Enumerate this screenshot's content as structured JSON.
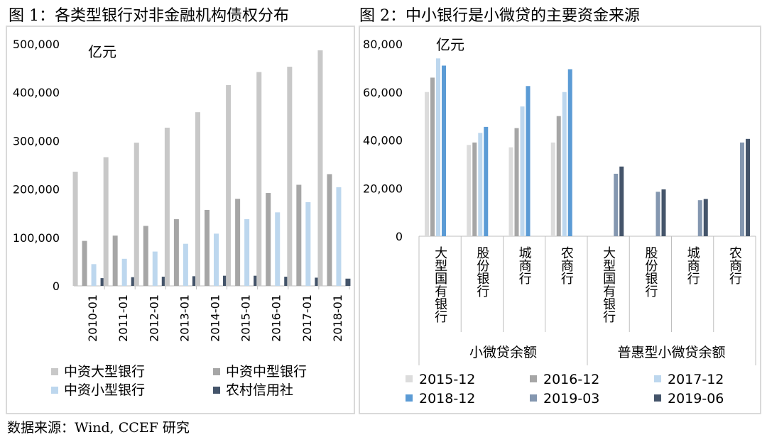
{
  "titles": {
    "fig1": "图 1：各类型银行对非金融机构债权分布",
    "fig2": "图 2：中小银行是小微贷的主要资金来源"
  },
  "source": "数据来源：Wind, CCEF 研究",
  "chart_data": [
    {
      "type": "bar",
      "title": "图 1：各类型银行对非金融机构债权分布",
      "unit_label": "亿元",
      "categories": [
        "2010-01",
        "2011-01",
        "2012-01",
        "2013-01",
        "2014-01",
        "2015-01",
        "2016-01",
        "2017-01",
        "2018-01"
      ],
      "ylim": [
        0,
        500000
      ],
      "yticks": [
        "500,000",
        "400,000",
        "300,000",
        "200,000",
        "100,000",
        "0"
      ],
      "ytick_values": [
        500000,
        400000,
        300000,
        200000,
        100000,
        0
      ],
      "legend_position": "bottom",
      "series": [
        {
          "name": "中资大型银行",
          "color": "#c8c8c8",
          "values": [
            236000,
            266000,
            296000,
            327000,
            359000,
            415000,
            442000,
            453000,
            487000
          ]
        },
        {
          "name": "中资中型银行",
          "color": "#a6a6a6",
          "values": [
            93000,
            104000,
            124000,
            138000,
            157000,
            180000,
            192000,
            209000,
            231000
          ]
        },
        {
          "name": "中资小型银行",
          "color": "#bdd7ee",
          "values": [
            45000,
            56000,
            71000,
            87000,
            108000,
            138000,
            152000,
            173000,
            204000
          ]
        },
        {
          "name": "农村信用社",
          "color": "#44546a",
          "values": [
            16000,
            18000,
            19000,
            20000,
            21000,
            21000,
            19000,
            17000,
            15000
          ]
        }
      ]
    },
    {
      "type": "bar",
      "title": "图 2：中小银行是小微贷的主要资金来源",
      "unit_label": "亿元",
      "categories": [
        "大型国有银行",
        "股份银行",
        "城商行",
        "农商行",
        "大型国有银行",
        "股份银行",
        "城商行",
        "农商行"
      ],
      "groups": [
        {
          "label": "小微贷余额",
          "span": [
            0,
            3
          ]
        },
        {
          "label": "普惠型小微贷余额",
          "span": [
            4,
            7
          ]
        }
      ],
      "ylim": [
        0,
        80000
      ],
      "yticks": [
        "80,000",
        "60,000",
        "40,000",
        "20,000",
        "0"
      ],
      "ytick_values": [
        80000,
        60000,
        40000,
        20000,
        0
      ],
      "legend_position": "bottom",
      "series": [
        {
          "name": "2015-12",
          "color": "#dcdcdc",
          "values": [
            60000,
            38000,
            37000,
            39000,
            null,
            null,
            null,
            null
          ]
        },
        {
          "name": "2016-12",
          "color": "#a6a6a6",
          "values": [
            66000,
            39000,
            45000,
            50000,
            null,
            null,
            null,
            null
          ]
        },
        {
          "name": "2017-12",
          "color": "#bdd7ee",
          "values": [
            74000,
            43000,
            54000,
            60000,
            null,
            null,
            null,
            null
          ]
        },
        {
          "name": "2018-12",
          "color": "#5b9bd5",
          "values": [
            71000,
            45500,
            62500,
            69500,
            null,
            null,
            null,
            null
          ]
        },
        {
          "name": "2019-03",
          "color": "#8497b0",
          "values": [
            null,
            null,
            null,
            null,
            26000,
            18500,
            15000,
            39000
          ]
        },
        {
          "name": "2019-06",
          "color": "#44546a",
          "values": [
            null,
            null,
            null,
            null,
            29000,
            19500,
            15500,
            40500
          ]
        }
      ]
    }
  ]
}
